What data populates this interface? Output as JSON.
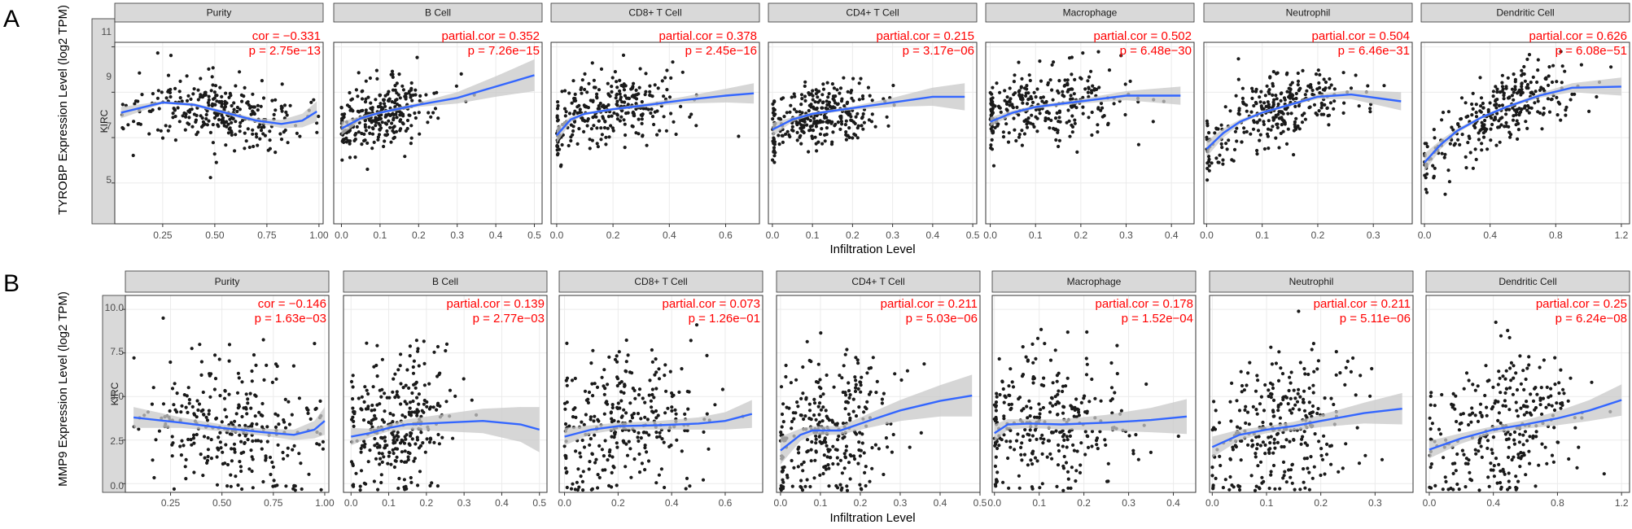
{
  "figure": {
    "panels": [
      {
        "letter": "A",
        "ylabel": "TYROBP Expression Level (log2 TPM)",
        "xlabel": "Infiltration Level",
        "strip": "KIRC",
        "yticks": [
          "5",
          "7",
          "9",
          "11"
        ]
      },
      {
        "letter": "B",
        "ylabel": "MMP9 Expression Level (log2 TPM)",
        "xlabel": "Infiltration Level",
        "strip": "KIRC",
        "yticks": [
          "0.0",
          "2.5",
          "5.0",
          "7.5",
          "10.0"
        ]
      }
    ]
  },
  "colors": {
    "points": "#1a1a1a",
    "fit_line": "#3366ff",
    "confidence_band": "#c8c8c8",
    "annotation": "#ff0000",
    "strip_fill": "#d9d9d9",
    "grid": "#ebebeb"
  },
  "chart_data": [
    {
      "type": "scatter",
      "title": "A",
      "gene": "TYROBP",
      "cancer": "KIRC",
      "ylabel": "TYROBP Expression Level (log2 TPM)",
      "xlabel": "Infiltration Level",
      "ylim": [
        3.2,
        11.2
      ],
      "yticks": [
        5,
        7,
        9,
        11
      ],
      "facets": [
        {
          "name": "Purity",
          "xlim": [
            0.02,
            1.02
          ],
          "xticks": [
            0.25,
            0.5,
            0.75,
            1.0
          ],
          "xtick_labels": [
            "0.25",
            "0.50",
            "0.75",
            "1.00"
          ],
          "cor_label": "cor = −0.331",
          "p_label": "p = 2.75e−13",
          "cor": -0.331,
          "p": 2.75e-13,
          "fit": [
            [
              0.05,
              8.1
            ],
            [
              0.25,
              8.55
            ],
            [
              0.4,
              8.45
            ],
            [
              0.55,
              8.1
            ],
            [
              0.7,
              7.75
            ],
            [
              0.82,
              7.6
            ],
            [
              0.92,
              7.75
            ],
            [
              0.99,
              8.15
            ]
          ],
          "band": [
            0.25,
            0.06,
            0.07,
            0.08,
            0.1,
            0.18,
            0.3,
            0.45
          ],
          "cx": 0.55,
          "sx": 0.2,
          "xmin": 0.05,
          "xmax": 1.0,
          "cy": 8.3,
          "sy": 1.0
        },
        {
          "name": "B Cell",
          "xlim": [
            -0.02,
            0.52
          ],
          "xticks": [
            0,
            0.1,
            0.2,
            0.3,
            0.4,
            0.5
          ],
          "xtick_labels": [
            "0.0",
            "0.1",
            "0.2",
            "0.3",
            "0.4",
            "0.5"
          ],
          "cor_label": "partial.cor = 0.352",
          "p_label": "p = 7.26e−15",
          "cor": 0.352,
          "p": 7.26e-15,
          "fit": [
            [
              0.0,
              7.4
            ],
            [
              0.05,
              7.85
            ],
            [
              0.1,
              8.1
            ],
            [
              0.2,
              8.45
            ],
            [
              0.3,
              8.75
            ],
            [
              0.4,
              9.25
            ],
            [
              0.5,
              9.75
            ]
          ],
          "band": [
            0.3,
            0.1,
            0.06,
            0.1,
            0.25,
            0.45,
            0.7
          ],
          "cx": 0.1,
          "sx": 0.07,
          "xmin": 0.0,
          "xmax": 0.5,
          "cy": 8.2,
          "sy": 1.0
        },
        {
          "name": "CD8+ T Cell",
          "xlim": [
            -0.02,
            0.72
          ],
          "xticks": [
            0,
            0.2,
            0.4,
            0.6
          ],
          "xtick_labels": [
            "0.0",
            "0.2",
            "0.4",
            "0.6"
          ],
          "cor_label": "partial.cor = 0.378",
          "p_label": "p = 2.45e−16",
          "cor": 0.378,
          "p": 2.45e-16,
          "fit": [
            [
              0.0,
              7.1
            ],
            [
              0.05,
              7.8
            ],
            [
              0.1,
              8.05
            ],
            [
              0.2,
              8.25
            ],
            [
              0.3,
              8.4
            ],
            [
              0.45,
              8.65
            ],
            [
              0.6,
              8.85
            ],
            [
              0.7,
              8.95
            ]
          ],
          "band": [
            0.35,
            0.12,
            0.06,
            0.06,
            0.08,
            0.15,
            0.3,
            0.45
          ],
          "cx": 0.2,
          "sx": 0.13,
          "xmin": 0.0,
          "xmax": 0.7,
          "cy": 8.2,
          "sy": 1.0
        },
        {
          "name": "CD4+ T Cell",
          "xlim": [
            -0.01,
            0.51
          ],
          "xticks": [
            0,
            0.1,
            0.2,
            0.3,
            0.4,
            0.5
          ],
          "xtick_labels": [
            "0.0",
            "0.1",
            "0.2",
            "0.3",
            "0.4",
            "0.5"
          ],
          "cor_label": "partial.cor = 0.215",
          "p_label": "p = 3.17e−06",
          "cor": 0.215,
          "p": 3.17e-06,
          "fit": [
            [
              0.0,
              7.35
            ],
            [
              0.05,
              7.8
            ],
            [
              0.1,
              8.05
            ],
            [
              0.2,
              8.3
            ],
            [
              0.3,
              8.55
            ],
            [
              0.4,
              8.8
            ],
            [
              0.48,
              8.8
            ]
          ],
          "band": [
            0.3,
            0.1,
            0.06,
            0.08,
            0.2,
            0.4,
            0.6
          ],
          "cx": 0.12,
          "sx": 0.08,
          "xmin": 0.0,
          "xmax": 0.48,
          "cy": 8.2,
          "sy": 1.0
        },
        {
          "name": "Macrophage",
          "xlim": [
            -0.01,
            0.45
          ],
          "xticks": [
            0,
            0.1,
            0.2,
            0.3,
            0.4
          ],
          "xtick_labels": [
            "0.0",
            "0.1",
            "0.2",
            "0.3",
            "0.4"
          ],
          "cor_label": "partial.cor = 0.502",
          "p_label": "p = 6.48e−30",
          "cor": 0.502,
          "p": 6.48e-30,
          "fit": [
            [
              0.0,
              7.7
            ],
            [
              0.05,
              8.1
            ],
            [
              0.1,
              8.35
            ],
            [
              0.2,
              8.6
            ],
            [
              0.3,
              8.85
            ],
            [
              0.42,
              8.85
            ]
          ],
          "band": [
            0.2,
            0.1,
            0.08,
            0.1,
            0.2,
            0.4
          ],
          "cx": 0.12,
          "sx": 0.1,
          "xmin": 0.0,
          "xmax": 0.43,
          "cy": 8.2,
          "sy": 1.0
        },
        {
          "name": "Neutrophil",
          "xlim": [
            -0.005,
            0.37
          ],
          "xticks": [
            0,
            0.1,
            0.2,
            0.3
          ],
          "xtick_labels": [
            "0.0",
            "0.1",
            "0.2",
            "0.3"
          ],
          "cor_label": "partial.cor = 0.504",
          "p_label": "p = 6.46e−31",
          "cor": 0.504,
          "p": 6.46e-31,
          "fit": [
            [
              0.0,
              6.5
            ],
            [
              0.03,
              7.2
            ],
            [
              0.06,
              7.7
            ],
            [
              0.1,
              8.1
            ],
            [
              0.15,
              8.45
            ],
            [
              0.2,
              8.8
            ],
            [
              0.26,
              8.9
            ],
            [
              0.35,
              8.6
            ]
          ],
          "band": [
            0.35,
            0.2,
            0.1,
            0.06,
            0.06,
            0.1,
            0.2,
            0.4
          ],
          "cx": 0.12,
          "sx": 0.07,
          "xmin": 0.0,
          "xmax": 0.35,
          "cy": 8.1,
          "sy": 1.0
        },
        {
          "name": "Dendritic Cell",
          "xlim": [
            -0.02,
            1.25
          ],
          "xticks": [
            0,
            0.4,
            0.8,
            1.2
          ],
          "xtick_labels": [
            "0.0",
            "0.4",
            "0.8",
            "1.2"
          ],
          "cor_label": "partial.cor = 0.626",
          "p_label": "p = 6.08e−51",
          "cor": 0.626,
          "p": 6.08e-51,
          "fit": [
            [
              0.0,
              5.9
            ],
            [
              0.1,
              6.7
            ],
            [
              0.2,
              7.3
            ],
            [
              0.35,
              7.9
            ],
            [
              0.5,
              8.35
            ],
            [
              0.7,
              8.85
            ],
            [
              0.9,
              9.2
            ],
            [
              1.2,
              9.25
            ]
          ],
          "band": [
            0.4,
            0.2,
            0.1,
            0.06,
            0.06,
            0.1,
            0.2,
            0.4
          ],
          "cx": 0.45,
          "sx": 0.25,
          "xmin": 0.0,
          "xmax": 1.2,
          "cy": 8.0,
          "sy": 1.0
        }
      ]
    },
    {
      "type": "scatter",
      "title": "B",
      "gene": "MMP9",
      "cancer": "KIRC",
      "ylabel": "MMP9 Expression Level (log2 TPM)",
      "xlabel": "Infiltration Level",
      "ylim": [
        -0.5,
        10.8
      ],
      "yticks": [
        0,
        2.5,
        5,
        7.5,
        10
      ],
      "facets": [
        {
          "name": "Purity",
          "xlim": [
            0.03,
            1.02
          ],
          "xticks": [
            0.25,
            0.5,
            0.75,
            1.0
          ],
          "xtick_labels": [
            "0.25",
            "0.50",
            "0.75",
            "1.00"
          ],
          "cor_label": "cor = −0.146",
          "p_label": "p = 1.63e−03",
          "cor": -0.146,
          "p": 0.00163,
          "fit": [
            [
              0.07,
              3.8
            ],
            [
              0.3,
              3.5
            ],
            [
              0.5,
              3.2
            ],
            [
              0.7,
              2.95
            ],
            [
              0.85,
              2.8
            ],
            [
              0.95,
              3.1
            ],
            [
              1.0,
              3.6
            ]
          ],
          "band": [
            0.6,
            0.3,
            0.2,
            0.2,
            0.3,
            0.5,
            0.8
          ],
          "cx": 0.55,
          "sx": 0.22,
          "xmin": 0.07,
          "xmax": 1.0,
          "cy": 3.1,
          "sy": 1.9
        },
        {
          "name": "B Cell",
          "xlim": [
            -0.02,
            0.52
          ],
          "xticks": [
            0,
            0.1,
            0.2,
            0.3,
            0.4,
            0.5
          ],
          "xtick_labels": [
            "0.0",
            "0.1",
            "0.2",
            "0.3",
            "0.4",
            "0.5"
          ],
          "cor_label": "partial.cor = 0.139",
          "p_label": "p = 2.77e−03",
          "cor": 0.139,
          "p": 0.00277,
          "fit": [
            [
              0.0,
              2.7
            ],
            [
              0.05,
              2.9
            ],
            [
              0.1,
              3.2
            ],
            [
              0.15,
              3.4
            ],
            [
              0.25,
              3.5
            ],
            [
              0.35,
              3.6
            ],
            [
              0.45,
              3.4
            ],
            [
              0.5,
              3.1
            ]
          ],
          "band": [
            0.5,
            0.25,
            0.2,
            0.3,
            0.5,
            0.7,
            1.0,
            1.3
          ],
          "cx": 0.12,
          "sx": 0.07,
          "xmin": 0.0,
          "xmax": 0.5,
          "cy": 3.3,
          "sy": 2.0
        },
        {
          "name": "CD8+ T Cell",
          "xlim": [
            -0.02,
            0.74
          ],
          "xticks": [
            0,
            0.2,
            0.4,
            0.6
          ],
          "xtick_labels": [
            "0.0",
            "0.2",
            "0.4",
            "0.6"
          ],
          "cor_label": "partial.cor = 0.073",
          "p_label": "p = 1.26e−01",
          "cor": 0.073,
          "p": 0.126,
          "fit": [
            [
              0.0,
              2.7
            ],
            [
              0.1,
              3.1
            ],
            [
              0.2,
              3.3
            ],
            [
              0.35,
              3.35
            ],
            [
              0.5,
              3.45
            ],
            [
              0.6,
              3.6
            ],
            [
              0.7,
              4.0
            ]
          ],
          "band": [
            0.5,
            0.25,
            0.2,
            0.25,
            0.35,
            0.5,
            0.8
          ],
          "cx": 0.22,
          "sx": 0.15,
          "xmin": 0.0,
          "xmax": 0.72,
          "cy": 3.3,
          "sy": 2.0
        },
        {
          "name": "CD4+ T Cell",
          "xlim": [
            -0.01,
            0.5
          ],
          "xticks": [
            0,
            0.1,
            0.2,
            0.3,
            0.4,
            0.5
          ],
          "xtick_labels": [
            "0.0",
            "0.1",
            "0.2",
            "0.3",
            "0.4",
            "0.5"
          ],
          "cor_label": "partial.cor = 0.211",
          "p_label": "p = 5.03e−06",
          "cor": 0.211,
          "p": 5.03e-06,
          "fit": [
            [
              0.0,
              1.9
            ],
            [
              0.05,
              2.8
            ],
            [
              0.08,
              3.05
            ],
            [
              0.15,
              3.05
            ],
            [
              0.22,
              3.6
            ],
            [
              0.3,
              4.2
            ],
            [
              0.4,
              4.75
            ],
            [
              0.48,
              5.05
            ]
          ],
          "band": [
            0.8,
            0.35,
            0.25,
            0.25,
            0.4,
            0.6,
            0.9,
            1.2
          ],
          "cx": 0.12,
          "sx": 0.08,
          "xmin": 0.0,
          "xmax": 0.48,
          "cy": 3.1,
          "sy": 2.0
        },
        {
          "name": "Macrophage",
          "xlim": [
            -0.005,
            0.45
          ],
          "xticks": [
            0,
            0.1,
            0.2,
            0.3,
            0.4
          ],
          "xtick_labels": [
            "0.0",
            "0.1",
            "0.2",
            "0.3",
            "0.4"
          ],
          "cor_label": "partial.cor = 0.178",
          "p_label": "p = 1.52e−04",
          "cor": 0.178,
          "p": 0.000152,
          "fit": [
            [
              0.0,
              2.9
            ],
            [
              0.03,
              3.4
            ],
            [
              0.08,
              3.45
            ],
            [
              0.15,
              3.4
            ],
            [
              0.25,
              3.5
            ],
            [
              0.35,
              3.65
            ],
            [
              0.43,
              3.85
            ]
          ],
          "band": [
            0.5,
            0.3,
            0.25,
            0.3,
            0.45,
            0.7,
            1.0
          ],
          "cx": 0.12,
          "sx": 0.1,
          "xmin": 0.0,
          "xmax": 0.43,
          "cy": 3.3,
          "sy": 2.0
        },
        {
          "name": "Neutrophil",
          "xlim": [
            -0.005,
            0.37
          ],
          "xticks": [
            0,
            0.1,
            0.2,
            0.3
          ],
          "xtick_labels": [
            "0.0",
            "0.1",
            "0.2",
            "0.3"
          ],
          "cor_label": "partial.cor = 0.211",
          "p_label": "p = 5.11e−06",
          "cor": 0.211,
          "p": 5.11e-06,
          "fit": [
            [
              0.0,
              2.1
            ],
            [
              0.05,
              2.8
            ],
            [
              0.1,
              3.1
            ],
            [
              0.15,
              3.3
            ],
            [
              0.2,
              3.6
            ],
            [
              0.28,
              4.05
            ],
            [
              0.35,
              4.3
            ]
          ],
          "band": [
            0.6,
            0.3,
            0.2,
            0.25,
            0.35,
            0.6,
            0.9
          ],
          "cx": 0.12,
          "sx": 0.07,
          "xmin": 0.0,
          "xmax": 0.35,
          "cy": 3.2,
          "sy": 2.0
        },
        {
          "name": "Dendritic Cell",
          "xlim": [
            -0.02,
            1.25
          ],
          "xticks": [
            0,
            0.4,
            0.8,
            1.2
          ],
          "xtick_labels": [
            "0.0",
            "0.4",
            "0.8",
            "1.2"
          ],
          "cor_label": "partial.cor = 0.25",
          "p_label": "p = 6.24e−08",
          "cor": 0.25,
          "p": 6.24e-08,
          "fit": [
            [
              0.0,
              1.95
            ],
            [
              0.2,
              2.6
            ],
            [
              0.4,
              3.1
            ],
            [
              0.6,
              3.4
            ],
            [
              0.8,
              3.75
            ],
            [
              1.0,
              4.2
            ],
            [
              1.2,
              4.8
            ]
          ],
          "band": [
            0.5,
            0.3,
            0.2,
            0.25,
            0.4,
            0.6,
            0.9
          ],
          "cx": 0.45,
          "sx": 0.25,
          "xmin": 0.0,
          "xmax": 1.2,
          "cy": 3.2,
          "sy": 2.0
        }
      ]
    }
  ]
}
